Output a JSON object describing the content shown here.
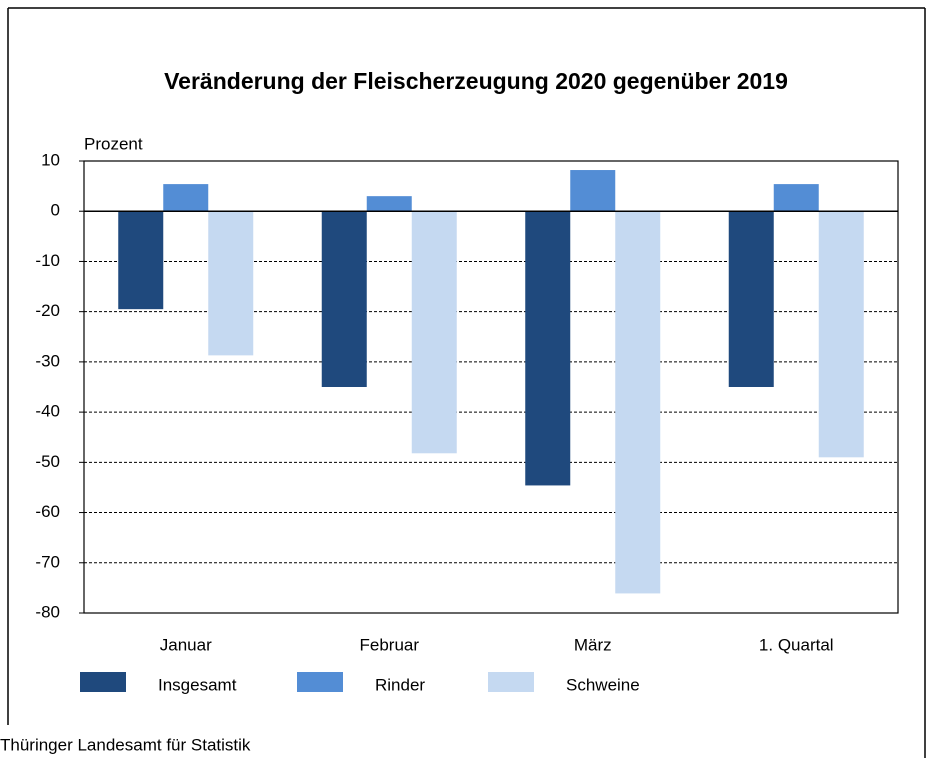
{
  "chart_data": {
    "type": "bar",
    "title": "Veränderung der Fleischerzeugung 2020 gegenüber 2019",
    "y_label": "Prozent",
    "source": "Thüringer Landesamt für Statistik",
    "categories": [
      "Januar",
      "Februar",
      "März",
      "1. Quartal"
    ],
    "series": [
      {
        "name": "Insgesamt",
        "color": "#1f497d",
        "values": [
          -19.5,
          -35.0,
          -54.6,
          -35.0
        ]
      },
      {
        "name": "Rinder",
        "color": "#538dd5",
        "values": [
          5.4,
          3.0,
          8.2,
          5.4
        ]
      },
      {
        "name": "Schweine",
        "color": "#c5d9f1",
        "values": [
          -28.7,
          -48.2,
          -76.1,
          -49.0
        ]
      }
    ],
    "ylim": [
      -80,
      10
    ],
    "yticks": [
      -80,
      -70,
      -60,
      -50,
      -40,
      -30,
      -20,
      -10,
      0,
      10
    ],
    "grid": true,
    "legend": "bottom"
  }
}
